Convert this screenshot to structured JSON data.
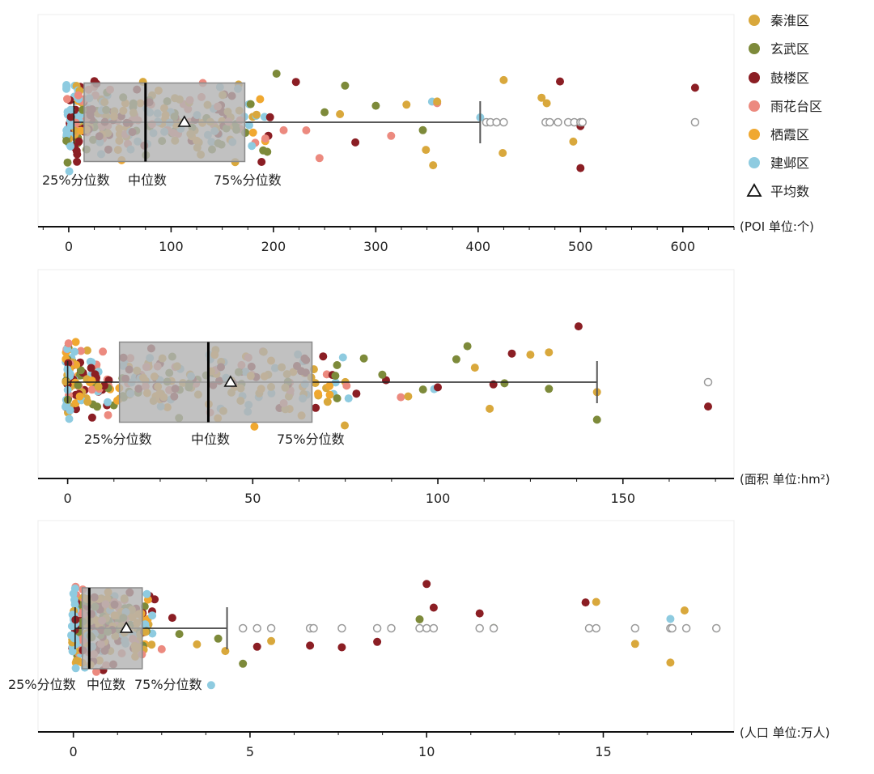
{
  "legend": [
    {
      "name": "秦淮区",
      "color": "#d9a83c"
    },
    {
      "name": "玄武区",
      "color": "#7d8a3a"
    },
    {
      "name": "鼓楼区",
      "color": "#8b1e24"
    },
    {
      "name": "雨花台区",
      "color": "#ec8a7f"
    },
    {
      "name": "栖霞区",
      "color": "#f0a830"
    },
    {
      "name": "建邺区",
      "color": "#8ecbe0"
    },
    {
      "name": "平均数",
      "marker": "triangle"
    }
  ],
  "colors": {
    "box_fill": "#b3b3b3",
    "box_edge": "#8a8a8a",
    "outlier": "#9a9a9a",
    "axis": "#111111"
  },
  "chart_data": [
    {
      "type": "boxplot",
      "unit_label": "(POI 单位:个)",
      "xlim": [
        -30,
        650
      ],
      "xticks": [
        0,
        100,
        200,
        300,
        400,
        500,
        600
      ],
      "box": {
        "whisker_low": 5,
        "q1": 15,
        "median": 75,
        "q3": 172,
        "whisker_high": 402,
        "mean": 113
      },
      "annotations": {
        "q1_label": "25%分位数",
        "median_label": "中位数",
        "q3_label": "75%分位数"
      },
      "outliers": [
        408,
        412,
        418,
        425,
        466,
        470,
        478,
        488,
        494,
        500,
        502,
        612
      ],
      "points": [
        {
          "x": 120,
          "series": 2
        },
        {
          "x": 125,
          "series": 5
        },
        {
          "x": 118,
          "series": 3
        },
        {
          "x": 150,
          "series": 2
        },
        {
          "x": 355,
          "series": 5
        },
        {
          "x": 360,
          "series": 3
        },
        {
          "x": 425,
          "series": 0
        },
        {
          "x": 493,
          "series": 0
        },
        {
          "x": 300,
          "series": 1
        },
        {
          "x": 346,
          "series": 1
        },
        {
          "x": 480,
          "series": 2
        },
        {
          "x": 402,
          "series": 5
        },
        {
          "x": 424,
          "series": 0
        },
        {
          "x": 467,
          "series": 0
        },
        {
          "x": 500,
          "series": 2
        },
        {
          "x": 612,
          "series": 2
        },
        {
          "x": 462,
          "series": 0
        },
        {
          "x": 500,
          "series": 2
        },
        {
          "x": 356,
          "series": 0
        },
        {
          "x": 349,
          "series": 0
        },
        {
          "x": 270,
          "series": 1
        },
        {
          "x": 232,
          "series": 3
        },
        {
          "x": 190,
          "series": 1
        },
        {
          "x": 145,
          "series": 2
        },
        {
          "x": 155,
          "series": 2
        },
        {
          "x": 195,
          "series": 2
        },
        {
          "x": 210,
          "series": 3
        },
        {
          "x": 250,
          "series": 1
        },
        {
          "x": 280,
          "series": 2
        },
        {
          "x": 315,
          "series": 3
        },
        {
          "x": 330,
          "series": 0
        },
        {
          "x": 245,
          "series": 3
        },
        {
          "x": 265,
          "series": 0
        },
        {
          "x": 222,
          "series": 2
        },
        {
          "x": 203,
          "series": 1
        },
        {
          "x": 360,
          "series": 0
        }
      ]
    },
    {
      "type": "boxplot",
      "unit_label": "(面积 单位:hm²)",
      "xlim": [
        -8,
        180
      ],
      "xticks": [
        0,
        50,
        100,
        150
      ],
      "box": {
        "whisker_low": 0,
        "q1": 14,
        "median": 38,
        "q3": 66,
        "whisker_high": 143,
        "mean": 44
      },
      "annotations": {
        "q1_label": "25%分位数",
        "median_label": "中位数",
        "q3_label": "75%分位数"
      },
      "outliers": [
        173
      ],
      "points": [
        {
          "x": 47,
          "series": 2
        },
        {
          "x": 60,
          "series": 3
        },
        {
          "x": 99,
          "series": 5
        },
        {
          "x": 125,
          "series": 0
        },
        {
          "x": 130,
          "series": 1
        },
        {
          "x": 173,
          "series": 2
        },
        {
          "x": 143,
          "series": 1
        },
        {
          "x": 143,
          "series": 0
        },
        {
          "x": 115,
          "series": 2
        },
        {
          "x": 114,
          "series": 0
        },
        {
          "x": 86,
          "series": 2
        },
        {
          "x": 67,
          "series": 2
        },
        {
          "x": 80,
          "series": 1
        },
        {
          "x": 96,
          "series": 1
        },
        {
          "x": 110,
          "series": 0
        },
        {
          "x": 120,
          "series": 2
        },
        {
          "x": 105,
          "series": 1
        },
        {
          "x": 90,
          "series": 3
        },
        {
          "x": 75,
          "series": 0
        },
        {
          "x": 85,
          "series": 1
        },
        {
          "x": 100,
          "series": 2
        },
        {
          "x": 118,
          "series": 1
        },
        {
          "x": 138,
          "series": 2
        },
        {
          "x": 70,
          "series": 3
        },
        {
          "x": 78,
          "series": 2
        },
        {
          "x": 92,
          "series": 0
        },
        {
          "x": 108,
          "series": 1
        },
        {
          "x": 130,
          "series": 0
        }
      ]
    },
    {
      "type": "boxplot",
      "unit_label": "(人口 单位:万人)",
      "xlim": [
        -1,
        18.7
      ],
      "xticks": [
        0,
        5,
        10,
        15
      ],
      "box": {
        "whisker_low": 0.05,
        "q1": 0.25,
        "median": 0.45,
        "q3": 1.95,
        "whisker_high": 4.35,
        "mean": 1.5
      },
      "annotations": {
        "q1_label": "25%分位数",
        "median_label": "中位数",
        "q3_label": "75%分位数"
      },
      "outliers": [
        4.8,
        5.2,
        5.6,
        6.7,
        6.8,
        7.6,
        8.6,
        9.0,
        9.8,
        10.0,
        10.2,
        11.5,
        11.9,
        14.6,
        14.8,
        15.9,
        16.9,
        16.95,
        17.35,
        18.2
      ],
      "points": [
        {
          "x": 0.5,
          "series": 2
        },
        {
          "x": 3.9,
          "series": 5
        },
        {
          "x": 5.2,
          "series": 2
        },
        {
          "x": 18.2,
          "series": 0
        },
        {
          "x": 8.6,
          "series": 2
        },
        {
          "x": 14.5,
          "series": 2
        },
        {
          "x": 9.8,
          "series": 1
        },
        {
          "x": 10.2,
          "series": 2
        },
        {
          "x": 11.9,
          "series": 1
        },
        {
          "x": 15.9,
          "series": 0
        },
        {
          "x": 16.9,
          "series": 5
        },
        {
          "x": 16.9,
          "series": 0
        },
        {
          "x": 5.6,
          "series": 0
        },
        {
          "x": 4.8,
          "series": 1
        },
        {
          "x": 6.7,
          "series": 2
        },
        {
          "x": 7.6,
          "series": 2
        },
        {
          "x": 10.0,
          "series": 2
        },
        {
          "x": 11.5,
          "series": 2
        },
        {
          "x": 14.8,
          "series": 0
        },
        {
          "x": 17.3,
          "series": 0
        },
        {
          "x": 4.3,
          "series": 0
        },
        {
          "x": 4.1,
          "series": 1
        },
        {
          "x": 3.0,
          "series": 1
        },
        {
          "x": 2.5,
          "series": 3
        },
        {
          "x": 2.3,
          "series": 2
        },
        {
          "x": 0.9,
          "series": 2
        },
        {
          "x": 3.5,
          "series": 0
        },
        {
          "x": 2.8,
          "series": 2
        }
      ]
    }
  ]
}
